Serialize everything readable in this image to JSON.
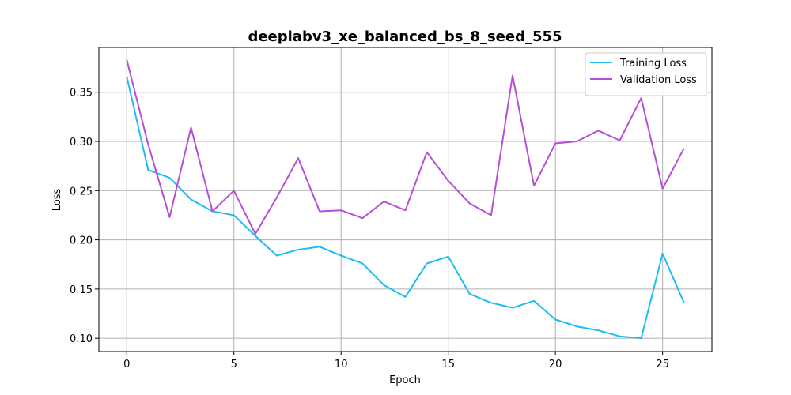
{
  "chart_data": {
    "type": "line",
    "title": "deeplabv3_xe_balanced_bs_8_seed_555",
    "xlabel": "Epoch",
    "ylabel": "Loss",
    "xlim": [
      -1.3,
      27.3
    ],
    "ylim": [
      0.0865,
      0.3955
    ],
    "xticks": [
      0,
      5,
      10,
      15,
      20,
      25
    ],
    "yticks": [
      0.1,
      0.15,
      0.2,
      0.25,
      0.3,
      0.35
    ],
    "grid": true,
    "legend_position": "top-right",
    "x": [
      0,
      1,
      2,
      3,
      4,
      5,
      6,
      7,
      8,
      9,
      10,
      11,
      12,
      13,
      14,
      15,
      16,
      17,
      18,
      19,
      20,
      21,
      22,
      23,
      24,
      25,
      26
    ],
    "series": [
      {
        "name": "Training Loss",
        "color": "#1ebcf2",
        "values": [
          0.366,
          0.271,
          0.263,
          0.241,
          0.229,
          0.225,
          0.204,
          0.184,
          0.19,
          0.193,
          0.184,
          0.176,
          0.154,
          0.142,
          0.176,
          0.183,
          0.145,
          0.136,
          0.131,
          0.138,
          0.119,
          0.112,
          0.108,
          0.102,
          0.1,
          0.186,
          0.136
        ]
      },
      {
        "name": "Validation Loss",
        "color": "#b64fd6",
        "values": [
          0.383,
          0.297,
          0.223,
          0.314,
          0.229,
          0.25,
          0.206,
          0.243,
          0.283,
          0.229,
          0.23,
          0.222,
          0.239,
          0.23,
          0.289,
          0.26,
          0.237,
          0.225,
          0.367,
          0.255,
          0.298,
          0.3,
          0.311,
          0.301,
          0.344,
          0.252,
          0.293
        ]
      }
    ]
  }
}
